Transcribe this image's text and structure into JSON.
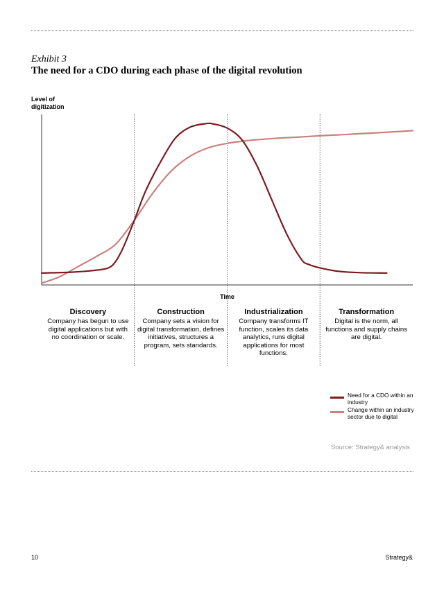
{
  "exhibit_label": "Exhibit 3",
  "title": "The need for a CDO during each phase of the digital revolution",
  "chart_data": {
    "type": "line",
    "title": "The need for a CDO during each phase of the digital revolution",
    "ylabel": "Level of digitization",
    "xlabel": "Time",
    "xlim": [
      0,
      100
    ],
    "ylim": [
      0,
      100
    ],
    "grid": false,
    "phase_boundaries": [
      25,
      50,
      75
    ],
    "phases": [
      {
        "name": "Discovery",
        "description": "Company has begun to use digital applications but with no coordination or scale."
      },
      {
        "name": "Construction",
        "description": "Company sets a vision for digital transformation, defines initiatives, structures a program, sets standards."
      },
      {
        "name": "Industrialization",
        "description": "Company transforms IT function, scales its data analytics, runs digital applications for most functions."
      },
      {
        "name": "Transformation",
        "description": "Digital is the norm, all functions and supply chains are digital."
      }
    ],
    "series": [
      {
        "name": "Need for a CDO within an industry",
        "color": "#7b1a1f",
        "x": [
          0,
          8,
          14,
          18,
          20,
          22,
          25,
          28,
          32,
          36,
          40,
          44,
          46,
          50,
          54,
          58,
          62,
          66,
          70,
          72,
          75,
          80,
          86,
          93
        ],
        "y": [
          7,
          7.5,
          8.5,
          10,
          14,
          22,
          38,
          55,
          72,
          86,
          92.5,
          94.5,
          94.5,
          92,
          85,
          70,
          50,
          30,
          15,
          12,
          10,
          8,
          7.2,
          7
        ]
      },
      {
        "name": "Change within an industry sector due to digital",
        "color": "#c9827c",
        "x": [
          0,
          5,
          10,
          15,
          20,
          25,
          30,
          35,
          40,
          45,
          50,
          55,
          60,
          65,
          70,
          75,
          80,
          85,
          90,
          95,
          100
        ],
        "y": [
          1,
          5,
          11,
          17,
          24,
          38,
          54,
          67,
          75.5,
          80.5,
          83,
          84.5,
          85.5,
          86.2,
          86.8,
          87.5,
          88,
          88.6,
          89.2,
          89.8,
          90.5
        ]
      }
    ],
    "legend_position": "bottom-right",
    "source": "Source: Strategy& analysis"
  },
  "footer": {
    "page_number": "10",
    "brand": "Strategy&"
  }
}
